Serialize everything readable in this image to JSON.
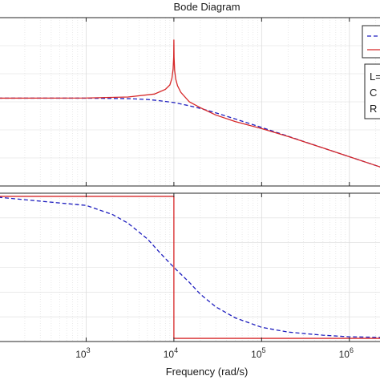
{
  "chart_data": {
    "type": "line",
    "title": "Bode Diagram",
    "xlabel": "Frequency  (rad/s)",
    "xscale": "log",
    "xlim": [
      100,
      3000000
    ],
    "xticks": [
      {
        "value": 1000,
        "base": "10",
        "exp": "3"
      },
      {
        "value": 10000,
        "base": "10",
        "exp": "4"
      },
      {
        "value": 100000,
        "base": "10",
        "exp": "5"
      },
      {
        "value": 1000000,
        "base": "10",
        "exp": "6"
      }
    ],
    "grid": true,
    "colors": {
      "series_1": "#1f1fbf",
      "series_2": "#d62728",
      "axes": "#262626",
      "grid": "#dcdcdc"
    },
    "series": [
      {
        "style": "dashed",
        "panel": "magnitude",
        "x": [
          100,
          1000,
          3000,
          5000,
          7000,
          10000,
          15000,
          20000,
          30000,
          50000,
          100000,
          200000,
          500000,
          1000000,
          2000000,
          3000000
        ],
        "y": [
          0,
          -0.01,
          -0.3,
          -0.9,
          -1.8,
          -3.0,
          -5.2,
          -7.0,
          -10.0,
          -14.2,
          -20.0,
          -26.0,
          -34.0,
          -40.0,
          -46.0,
          -49.5
        ]
      },
      {
        "style": "solid",
        "panel": "magnitude",
        "x": [
          100,
          1000,
          3000,
          6000,
          8000,
          9000,
          9500,
          9800,
          9950,
          10000,
          10050,
          10200,
          10500,
          11000,
          12000,
          15000,
          20000,
          30000,
          50000,
          100000,
          200000,
          500000,
          1000000,
          2000000,
          3000000
        ],
        "y": [
          0,
          0.1,
          0.8,
          2.8,
          6.0,
          9.0,
          13.5,
          20.0,
          28.0,
          40.0,
          28.0,
          19.0,
          13.0,
          8.5,
          4.0,
          -2.5,
          -6.5,
          -11.5,
          -16.0,
          -20.8,
          -26.2,
          -34.0,
          -40.0,
          -46.0,
          -49.6
        ]
      },
      {
        "style": "dashed",
        "panel": "phase",
        "x": [
          100,
          1000,
          2000,
          3000,
          5000,
          7000,
          10000,
          15000,
          20000,
          30000,
          50000,
          100000,
          200000,
          500000,
          1000000,
          3000000
        ],
        "y": [
          -1.1,
          -11.5,
          -23,
          -34,
          -54,
          -72,
          -90,
          -109,
          -124,
          -140,
          -154,
          -166,
          -172,
          -176,
          -178,
          -179
        ]
      },
      {
        "style": "solid",
        "panel": "phase",
        "x": [
          100,
          9999,
          10001,
          3000000
        ],
        "y": [
          0,
          0,
          -180,
          -180
        ]
      }
    ],
    "panels": [
      {
        "name": "magnitude",
        "ylim": [
          -60,
          55
        ]
      },
      {
        "name": "phase",
        "ylim": [
          -184,
          4
        ]
      }
    ],
    "legend": {
      "placement": "top-right",
      "text_box_lines": [
        "L=",
        "C",
        "R"
      ]
    }
  }
}
